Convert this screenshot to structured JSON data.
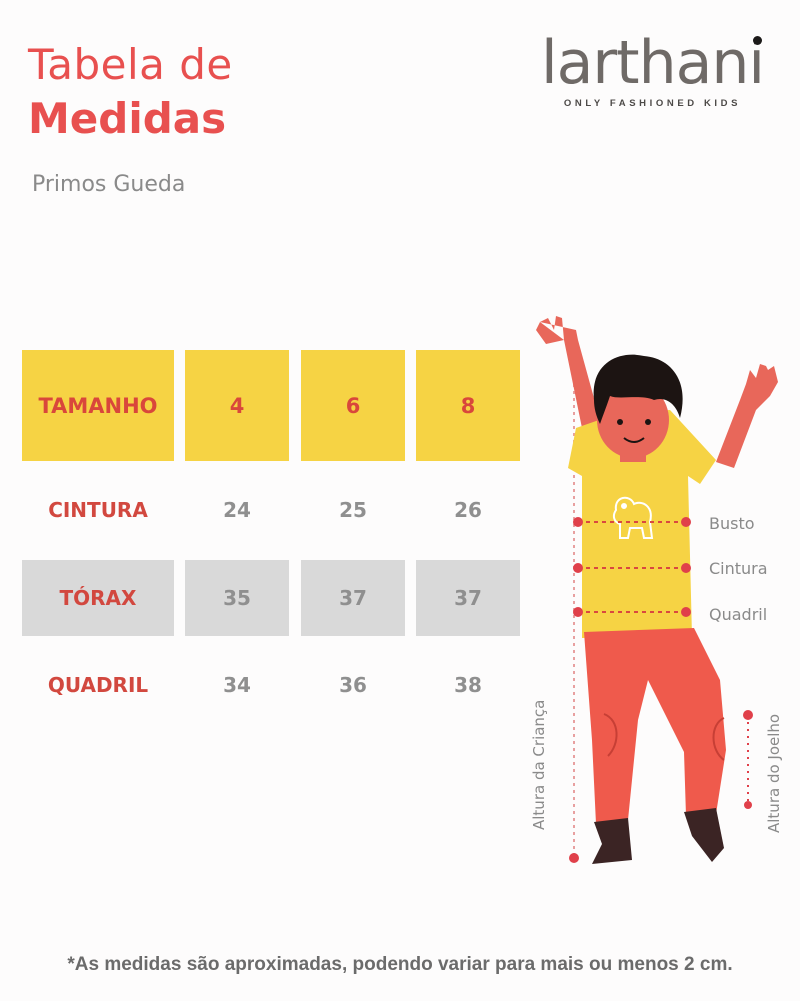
{
  "header": {
    "title_line1": "Tabela de",
    "title_line2": "Medidas",
    "subtitle": "Primos Gueda"
  },
  "logo": {
    "word": "larthani",
    "tagline": "ONLY FASHIONED KIDS"
  },
  "table": {
    "header": [
      "TAMANHO",
      "4",
      "6",
      "8"
    ],
    "rows": [
      {
        "label": "CINTURA",
        "values": [
          "24",
          "25",
          "26"
        ]
      },
      {
        "label": "TÓRAX",
        "values": [
          "35",
          "37",
          "37"
        ]
      },
      {
        "label": "QUADRIL",
        "values": [
          "34",
          "36",
          "38"
        ]
      }
    ]
  },
  "figure": {
    "labels": {
      "busto": "Busto",
      "cintura": "Cintura",
      "quadril": "Quadril",
      "altura_crianca": "Altura da Criança",
      "altura_joelho": "Altura do Joelho"
    },
    "colors": {
      "shirt": "#f6d344",
      "pants": "#ef5a4c",
      "skin": "#e8675a",
      "hair": "#1c1412",
      "guide": "#e0404a"
    }
  },
  "footer": {
    "note": "*As medidas são aproximadas, podendo variar para mais ou menos 2 cm."
  }
}
